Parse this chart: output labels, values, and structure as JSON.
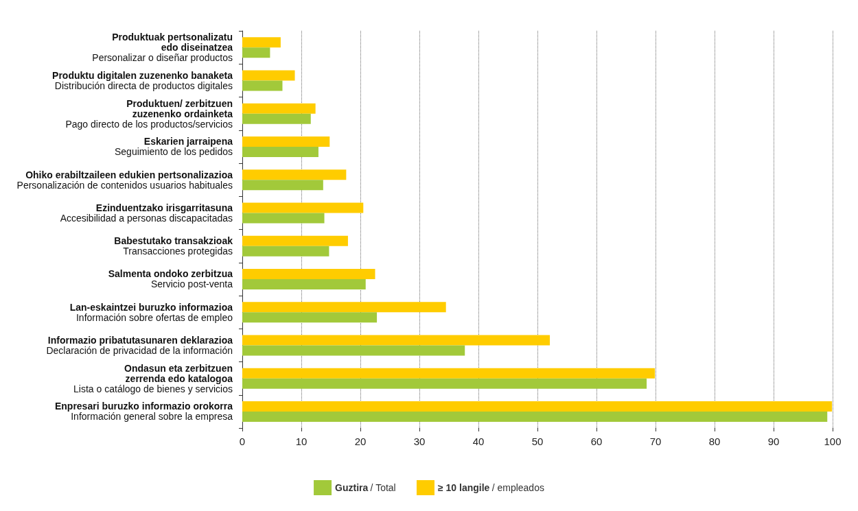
{
  "chart_data": {
    "type": "bar",
    "orientation": "horizontal",
    "categories": [
      "Produktuak pertsonalizatu\nedo diseinatzea\nPersonalizar o diseñar productos",
      "Produktu digitalen zuzenenko banaketa\nDistribución directa de productos digitales",
      "Produktuen/ zerbitzuen\nzuzenenko ordainketa\nPago directo de los productos/servicios",
      "Eskarien jarraipena\nSeguimiento de los pedidos",
      "Ohiko erabiltzaileen edukien pertsonalizazioa\nPersonalización de contenidos usuarios habituales",
      "Ezinduentzako irisgarritasuna\nAccesibilidad a personas discapacitadas",
      "Babestutako transakzioak\nTransacciones protegidas",
      "Salmenta ondoko zerbitzua\nServicio post-venta",
      "Lan-eskaintzei buruzko informazioa\nInformación sobre ofertas de empleo",
      "Informazio pribatutasunaren deklarazioa\nDeclaración de privacidad de la información",
      "Ondasun eta zerbitzuen\nzerrenda edo katalogoa\nLista o catálogo de bienes y servicios",
      "Enpresari buruzko informazio orokorra\nInformación general sobre la empresa"
    ],
    "series": [
      {
        "name": "≥ 10 langile / empleados",
        "color": "#ffcc00",
        "values": [
          6.5,
          8.9,
          12.4,
          14.8,
          17.6,
          20.5,
          17.9,
          22.5,
          34.5,
          52.1,
          69.9,
          99.9
        ]
      },
      {
        "name": "Guztira / Total",
        "color": "#a2c93a",
        "values": [
          4.7,
          6.8,
          11.6,
          12.9,
          13.7,
          13.9,
          14.7,
          20.9,
          22.8,
          37.7,
          68.5,
          99.1
        ]
      }
    ],
    "xlim": [
      0,
      100
    ],
    "xticks": [
      0,
      10,
      20,
      30,
      40,
      50,
      60,
      70,
      80,
      90,
      100
    ],
    "grid": "x",
    "legend": "bottom"
  }
}
